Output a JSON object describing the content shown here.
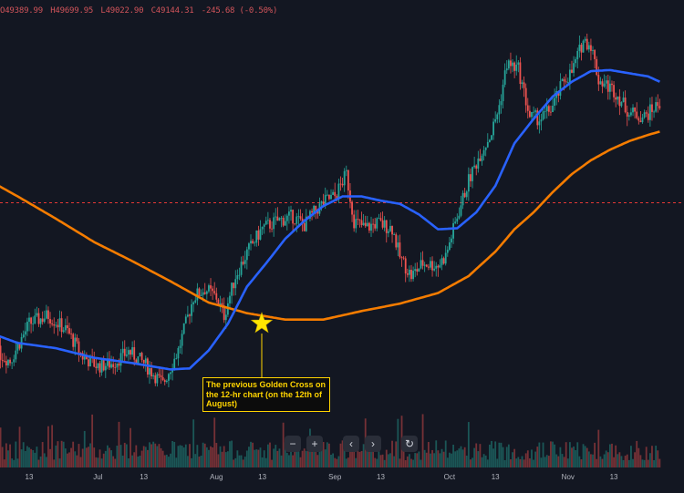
{
  "header": {
    "open": "O49389.99",
    "high": "H49699.95",
    "low": "L49022.90",
    "close": "C49144.31",
    "change": "-245.68 (-0.50%)"
  },
  "annotation": {
    "text": "The previous Golden Cross on the 12-hr chart (on the 12th of August)"
  },
  "toolbar": {
    "zoom_out_icon": "minus-icon",
    "zoom_in_icon": "plus-icon",
    "scroll_left_icon": "chevron-left-icon",
    "scroll_right_icon": "chevron-right-icon",
    "reset_icon": "reset-icon"
  },
  "colors": {
    "background": "#131722",
    "up": "#26a69a",
    "down": "#ef5350",
    "ma_short": "#2962ff",
    "ma_long": "#f57c00",
    "reference_line": "#e53935",
    "annotation": "#ffd400"
  },
  "chart_data": {
    "type": "line",
    "x_ticks": [
      "13",
      "Jul",
      "13",
      "Aug",
      "13",
      "Sep",
      "13",
      "Oct",
      "13",
      "Nov",
      "13"
    ],
    "x_tick_days": [
      13,
      31,
      43,
      62,
      74,
      93,
      105,
      123,
      135,
      154,
      166
    ],
    "ylim": [
      28000,
      68000
    ],
    "reference_level": 48900,
    "series": [
      {
        "kind": "candles",
        "close_points": [
          [
            -5,
            36500
          ],
          [
            0,
            38500
          ],
          [
            4,
            35000
          ],
          [
            8,
            34000
          ],
          [
            13,
            37500
          ],
          [
            18,
            38300
          ],
          [
            23,
            36800
          ],
          [
            27,
            34400
          ],
          [
            31,
            33500
          ],
          [
            35,
            33800
          ],
          [
            39,
            34900
          ],
          [
            43,
            33800
          ],
          [
            45,
            33000
          ],
          [
            48,
            31800
          ],
          [
            52,
            35000
          ],
          [
            56,
            40000
          ],
          [
            59,
            40800
          ],
          [
            62,
            40000
          ],
          [
            64,
            38300
          ],
          [
            67,
            42000
          ],
          [
            70,
            44200
          ],
          [
            74,
            46500
          ],
          [
            78,
            47200
          ],
          [
            82,
            47600
          ],
          [
            85,
            46800
          ],
          [
            88,
            48200
          ],
          [
            91,
            49200
          ],
          [
            93,
            49500
          ],
          [
            96,
            51600
          ],
          [
            98,
            47200
          ],
          [
            101,
            46500
          ],
          [
            104,
            47000
          ],
          [
            108,
            46500
          ],
          [
            110,
            43800
          ],
          [
            113,
            42000
          ],
          [
            116,
            43200
          ],
          [
            120,
            43000
          ],
          [
            122,
            43900
          ],
          [
            125,
            47600
          ],
          [
            128,
            51000
          ],
          [
            131,
            53500
          ],
          [
            134,
            55500
          ],
          [
            136,
            58000
          ],
          [
            138,
            62000
          ],
          [
            141,
            61500
          ],
          [
            144,
            57000
          ],
          [
            147,
            56800
          ],
          [
            150,
            58000
          ],
          [
            153,
            60500
          ],
          [
            155,
            61200
          ],
          [
            158,
            64200
          ],
          [
            160,
            63800
          ],
          [
            162,
            60500
          ],
          [
            166,
            59500
          ],
          [
            170,
            57400
          ],
          [
            174,
            57000
          ],
          [
            178,
            58300
          ]
        ]
      },
      {
        "kind": "moving-average-short",
        "points": [
          [
            -5,
            38700
          ],
          [
            0,
            37000
          ],
          [
            10,
            35700
          ],
          [
            20,
            35200
          ],
          [
            30,
            34300
          ],
          [
            40,
            33800
          ],
          [
            50,
            33200
          ],
          [
            55,
            33300
          ],
          [
            60,
            35000
          ],
          [
            65,
            37500
          ],
          [
            70,
            41000
          ],
          [
            75,
            43200
          ],
          [
            80,
            45500
          ],
          [
            85,
            47200
          ],
          [
            90,
            48600
          ],
          [
            95,
            49500
          ],
          [
            100,
            49500
          ],
          [
            105,
            49100
          ],
          [
            110,
            48800
          ],
          [
            115,
            47800
          ],
          [
            120,
            46400
          ],
          [
            125,
            46500
          ],
          [
            130,
            48000
          ],
          [
            135,
            50500
          ],
          [
            140,
            54500
          ],
          [
            145,
            56800
          ],
          [
            150,
            58900
          ],
          [
            155,
            60300
          ],
          [
            160,
            61300
          ],
          [
            165,
            61400
          ],
          [
            170,
            61100
          ],
          [
            175,
            60800
          ],
          [
            178,
            60300
          ]
        ]
      },
      {
        "kind": "moving-average-long",
        "points": [
          [
            -5,
            52000
          ],
          [
            0,
            51300
          ],
          [
            5,
            50500
          ],
          [
            10,
            49500
          ],
          [
            20,
            47400
          ],
          [
            30,
            45200
          ],
          [
            40,
            43400
          ],
          [
            50,
            41500
          ],
          [
            60,
            39500
          ],
          [
            70,
            38500
          ],
          [
            80,
            37900
          ],
          [
            90,
            37900
          ],
          [
            100,
            38700
          ],
          [
            110,
            39400
          ],
          [
            120,
            40400
          ],
          [
            128,
            42000
          ],
          [
            135,
            44300
          ],
          [
            140,
            46400
          ],
          [
            145,
            48000
          ],
          [
            150,
            49900
          ],
          [
            155,
            51600
          ],
          [
            160,
            52900
          ],
          [
            165,
            53900
          ],
          [
            170,
            54700
          ],
          [
            175,
            55300
          ],
          [
            178,
            55600
          ]
        ]
      }
    ]
  }
}
